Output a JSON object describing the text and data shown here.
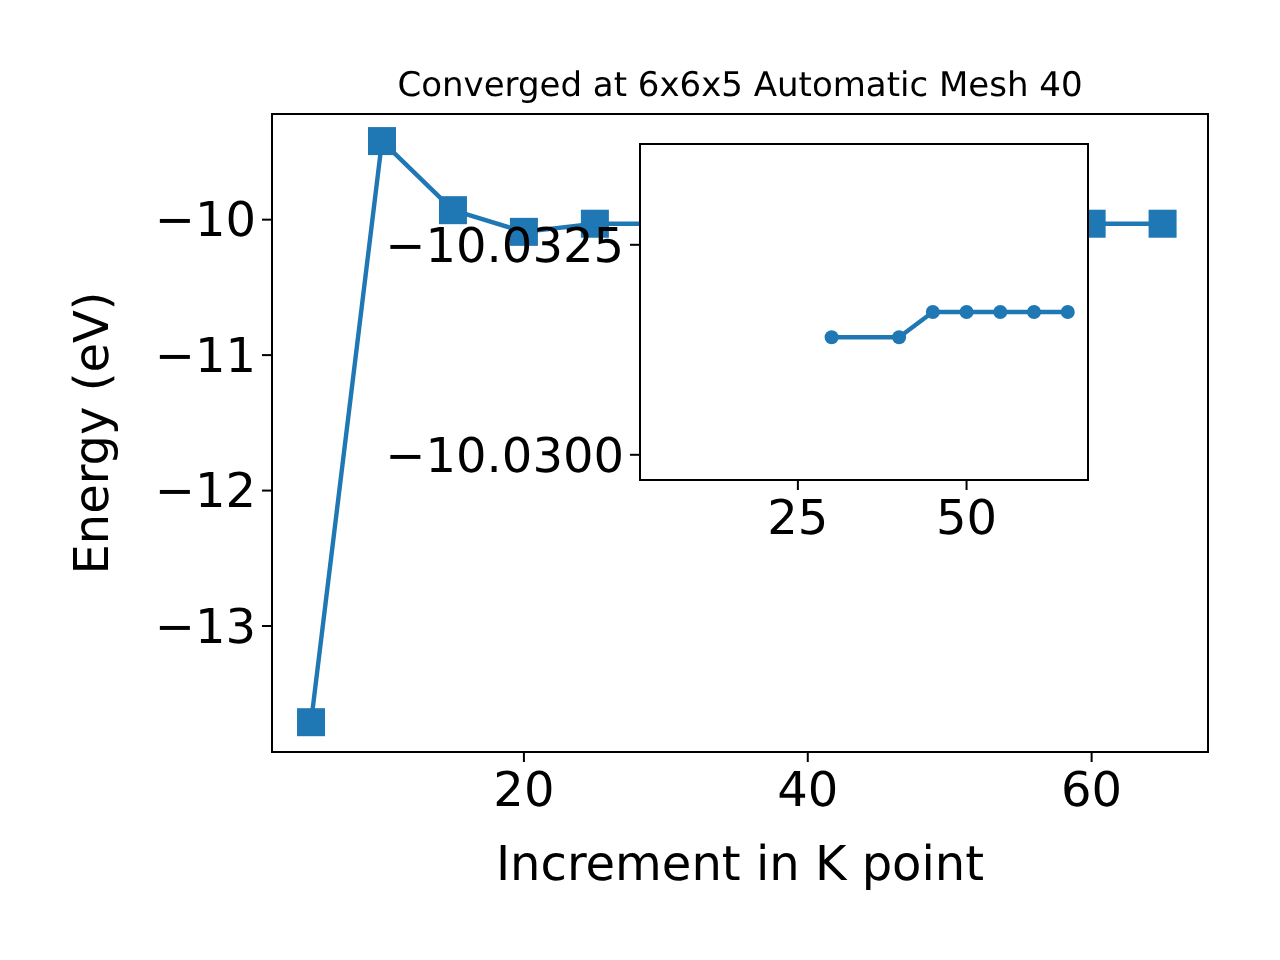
{
  "chart_data": [
    {
      "type": "line",
      "title": "Converged at 6x6x5 Automatic Mesh 40",
      "xlabel": "Increment in K point",
      "ylabel": "Energy (eV)",
      "x": [
        5,
        10,
        15,
        20,
        25,
        60,
        65
      ],
      "series": [
        {
          "color": "#1f77b4",
          "values": [
            -13.71,
            -9.42,
            -9.93,
            -10.09,
            -10.03,
            -10.03,
            -10.03
          ]
        }
      ],
      "xlim": [
        2.25,
        68.2
      ],
      "ylim": [
        -13.93,
        -9.22
      ],
      "xticks": [
        20,
        40,
        60
      ],
      "yticks": [
        -13,
        -12,
        -11,
        -10
      ],
      "marker": "square",
      "grid": false
    },
    {
      "type": "line",
      "x": [
        30,
        40,
        45,
        50,
        55,
        60,
        65
      ],
      "series": [
        {
          "color": "#1f77b4",
          "values": [
            -10.0314,
            -10.0314,
            -10.0317,
            -10.0317,
            -10.0317,
            -10.0317,
            -10.0317
          ]
        }
      ],
      "xlim": [
        1.6,
        68
      ],
      "ylim": [
        -10.0297,
        -10.0337
      ],
      "xticks": [
        25,
        50
      ],
      "yticks": [
        {
          "value": -10.03,
          "label": "−10.0300"
        },
        {
          "value": -10.0325,
          "label": "−10.0325"
        }
      ],
      "marker": "circle",
      "grid": false
    }
  ]
}
